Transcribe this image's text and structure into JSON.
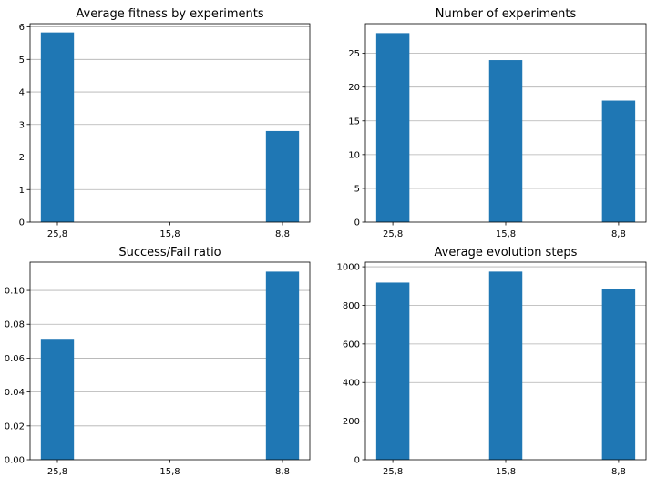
{
  "figure": {
    "bar_color": "#1f77b4",
    "grid": "y-major",
    "layout": "2x2"
  },
  "chart_data": [
    {
      "type": "bar",
      "title": "Average fitness by experiments",
      "categories": [
        "25,8",
        "15,8",
        "8,8"
      ],
      "values": [
        5.83,
        0.0,
        2.8
      ],
      "ylim": [
        0,
        6.1
      ],
      "yticks": [
        0,
        1,
        2,
        3,
        4,
        5,
        6
      ],
      "ytick_labels": [
        "0",
        "1",
        "2",
        "3",
        "4",
        "5",
        "6"
      ],
      "xlabel": "",
      "ylabel": ""
    },
    {
      "type": "bar",
      "title": "Number of experiments",
      "categories": [
        "25,8",
        "15,8",
        "8,8"
      ],
      "values": [
        28,
        24,
        18
      ],
      "ylim": [
        0,
        29.4
      ],
      "yticks": [
        0,
        5,
        10,
        15,
        20,
        25
      ],
      "ytick_labels": [
        "0",
        "5",
        "10",
        "15",
        "20",
        "25"
      ],
      "xlabel": "",
      "ylabel": ""
    },
    {
      "type": "bar",
      "title": "Success/Fail ratio",
      "categories": [
        "25,8",
        "15,8",
        "8,8"
      ],
      "values": [
        0.0714,
        0.0,
        0.1111
      ],
      "ylim": [
        0,
        0.1167
      ],
      "yticks": [
        0,
        0.02,
        0.04,
        0.06,
        0.08,
        0.1
      ],
      "ytick_labels": [
        "0.00",
        "0.02",
        "0.04",
        "0.06",
        "0.08",
        "0.10"
      ],
      "xlabel": "",
      "ylabel": ""
    },
    {
      "type": "bar",
      "title": "Average evolution steps",
      "categories": [
        "25,8",
        "15,8",
        "8,8"
      ],
      "values": [
        918,
        975,
        885
      ],
      "ylim": [
        0,
        1024
      ],
      "yticks": [
        0,
        200,
        400,
        600,
        800,
        1000
      ],
      "ytick_labels": [
        "0",
        "200",
        "400",
        "600",
        "800",
        "1000"
      ],
      "xlabel": "",
      "ylabel": ""
    }
  ]
}
